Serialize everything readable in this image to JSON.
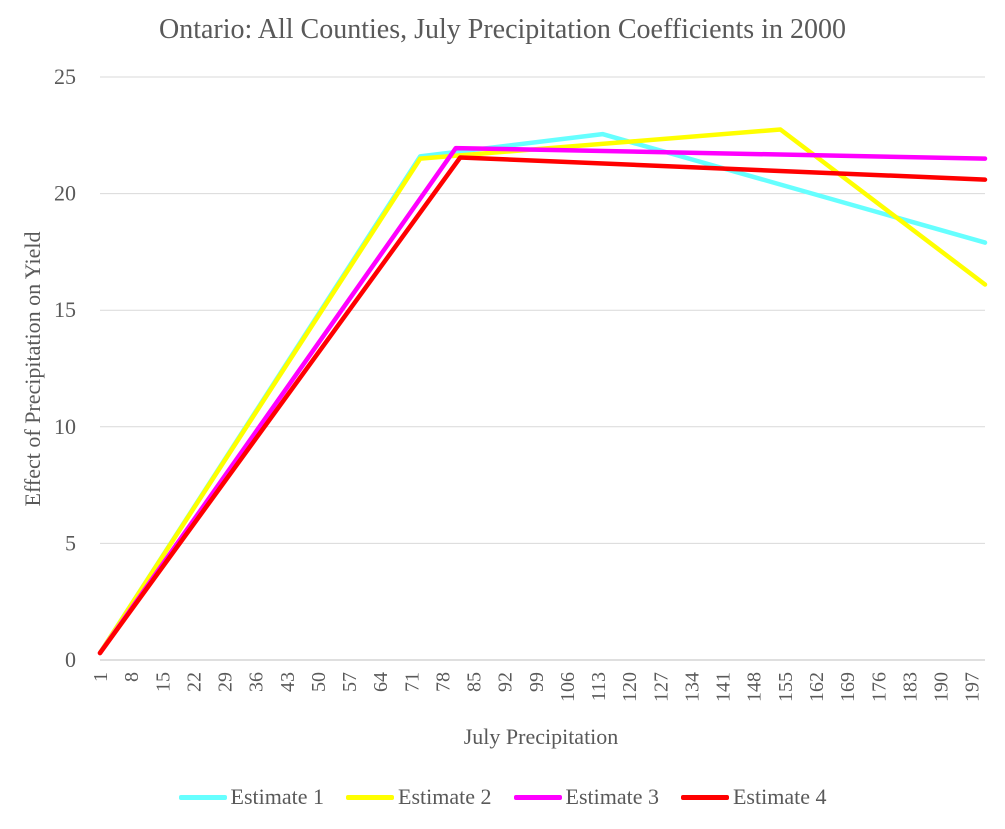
{
  "chart_data": {
    "type": "line",
    "title": "Ontario: All Counties, July Precipitation Coefficients in 2000",
    "xlabel": "July Precipitation",
    "ylabel": "Effect of Precipitation on Yield",
    "xlim": [
      1,
      200
    ],
    "ylim": [
      0,
      25
    ],
    "yticks": [
      0,
      5,
      10,
      15,
      20,
      25
    ],
    "xtick_labels": [
      "1",
      "8",
      "15",
      "22",
      "29",
      "36",
      "43",
      "50",
      "57",
      "64",
      "71",
      "78",
      "85",
      "92",
      "99",
      "106",
      "113",
      "120",
      "127",
      "134",
      "141",
      "148",
      "155",
      "162",
      "169",
      "176",
      "183",
      "190",
      "197"
    ],
    "grid": "horizontal",
    "legend_position": "bottom",
    "series": [
      {
        "name": "Estimate 1",
        "color": "#66FFFF",
        "points": [
          [
            1,
            0.3
          ],
          [
            73,
            21.6
          ],
          [
            114,
            22.55
          ],
          [
            200,
            17.9
          ]
        ]
      },
      {
        "name": "Estimate 2",
        "color": "#FFFF00",
        "points": [
          [
            1,
            0.3
          ],
          [
            73,
            21.5
          ],
          [
            154,
            22.75
          ],
          [
            200,
            16.1
          ]
        ]
      },
      {
        "name": "Estimate 3",
        "color": "#FF00FF",
        "points": [
          [
            1,
            0.3
          ],
          [
            81,
            21.95
          ],
          [
            200,
            21.5
          ]
        ]
      },
      {
        "name": "Estimate 4",
        "color": "#FF0000",
        "points": [
          [
            1,
            0.3
          ],
          [
            82,
            21.55
          ],
          [
            200,
            20.6
          ]
        ]
      }
    ]
  }
}
